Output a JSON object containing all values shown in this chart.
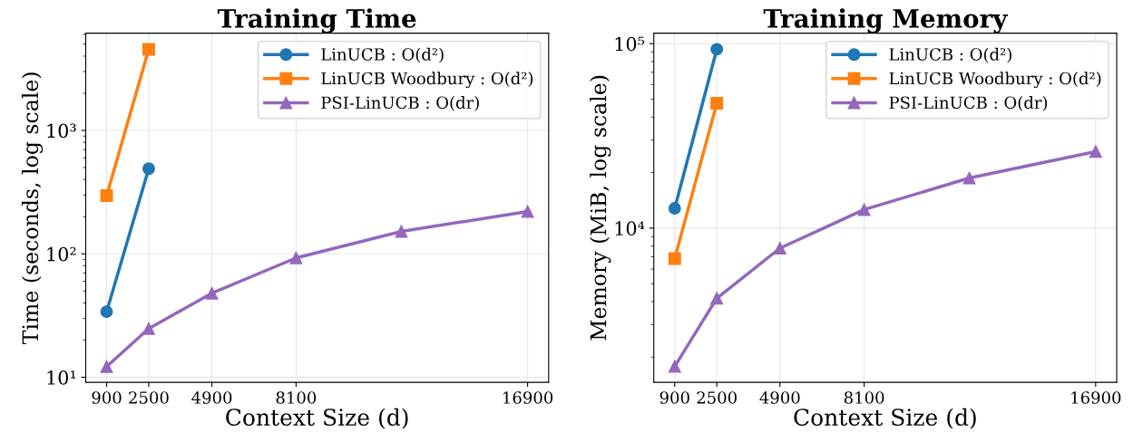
{
  "chart_data": [
    {
      "type": "line",
      "title": "Training Time",
      "xlabel": "Context Size (d)",
      "ylabel": "Time (seconds, log scale)",
      "log": "y",
      "grid": true,
      "legend": "top right",
      "line_style": "solid",
      "xlim": [
        105,
        17700
      ],
      "xticks": [
        900,
        2500,
        4900,
        8100,
        16900
      ],
      "ylim": [
        9.1,
        6140
      ],
      "yticks": [
        {
          "value": 10,
          "label": "10¹"
        },
        {
          "value": 100,
          "label": "10²"
        },
        {
          "value": 1000,
          "label": "10³"
        }
      ],
      "series": [
        {
          "name": "LinUCB : O(d²)",
          "color": "#1f77b4",
          "marker": "circle",
          "x": [
            900,
            2500
          ],
          "values": [
            34,
            490
          ]
        },
        {
          "name": "LinUCB Woodbury : O(d²)",
          "color": "#ff7f0e",
          "marker": "square",
          "x": [
            900,
            2500
          ],
          "values": [
            296,
            4540
          ]
        },
        {
          "name": "PSI-LinUCB : O(dr)",
          "color": "#9467bd",
          "marker": "triangle",
          "x": [
            900,
            2500,
            4900,
            8100,
            12100,
            16900
          ],
          "values": [
            12.2,
            24.8,
            48,
            92.7,
            152,
            220
          ]
        }
      ]
    },
    {
      "type": "line",
      "title": "Training Memory",
      "xlabel": "Context Size (d)",
      "ylabel": "Memory (MiB, log scale)",
      "log": "y",
      "grid": true,
      "legend": "top right",
      "line_style": "solid",
      "xlim": [
        105,
        17700
      ],
      "xticks": [
        900,
        2500,
        4900,
        8100,
        16900
      ],
      "ylim": [
        1460,
        114000
      ],
      "yticks": [
        {
          "value": 10000,
          "label": "10⁴"
        },
        {
          "value": 100000,
          "label": "10⁵"
        }
      ],
      "series": [
        {
          "name": "LinUCB : O(d²)",
          "color": "#1f77b4",
          "marker": "circle",
          "x": [
            900,
            2500
          ],
          "values": [
            12800,
            93200
          ]
        },
        {
          "name": "LinUCB Woodbury : O(d²)",
          "color": "#ff7f0e",
          "marker": "square",
          "x": [
            900,
            2500
          ],
          "values": [
            6840,
            47500
          ]
        },
        {
          "name": "PSI-LinUCB : O(dr)",
          "color": "#9467bd",
          "marker": "triangle",
          "x": [
            900,
            2500,
            4900,
            8100,
            12100,
            16900
          ],
          "values": [
            1780,
            4170,
            7790,
            12600,
            18700,
            26000
          ]
        }
      ]
    }
  ]
}
